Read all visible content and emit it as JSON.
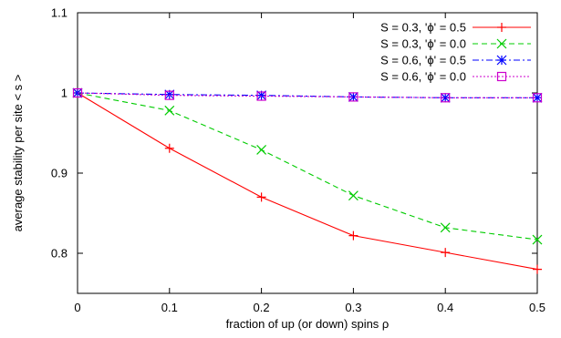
{
  "chart_data": {
    "type": "line",
    "xlabel": "fraction of up (or down) spins ρ",
    "ylabel": "average stability per site < s >",
    "xlim": [
      0,
      0.5
    ],
    "ylim": [
      0.75,
      1.1
    ],
    "x_ticks": [
      "0",
      "0.1",
      "0.2",
      "0.3",
      "0.4",
      "0.5"
    ],
    "y_ticks": [
      "0.8",
      "0.9",
      "1",
      "1.1"
    ],
    "grid": false,
    "legend_position": "top-right",
    "x": [
      0,
      0.1,
      0.2,
      0.3,
      0.4,
      0.5
    ],
    "series": [
      {
        "name": "S = 0.3, 'ϕ' = 0.5",
        "values": [
          1.0,
          0.931,
          0.87,
          0.822,
          0.801,
          0.78
        ],
        "color": "#ff0000",
        "line_style": "solid",
        "marker": "plus"
      },
      {
        "name": "S = 0.3, 'ϕ' = 0.0",
        "values": [
          1.0,
          0.978,
          0.929,
          0.872,
          0.832,
          0.817
        ],
        "color": "#00cc00",
        "line_style": "dashed",
        "marker": "cross"
      },
      {
        "name": "S = 0.6, 'ϕ' = 0.5",
        "values": [
          1.0,
          0.998,
          0.997,
          0.995,
          0.994,
          0.994
        ],
        "color": "#0000ff",
        "line_style": "dotted-dash",
        "marker": "asterisk"
      },
      {
        "name": "S = 0.6, 'ϕ' = 0.0",
        "values": [
          1.0,
          0.997,
          0.996,
          0.995,
          0.994,
          0.994
        ],
        "color": "#cc00cc",
        "line_style": "dotted",
        "marker": "square"
      }
    ]
  }
}
